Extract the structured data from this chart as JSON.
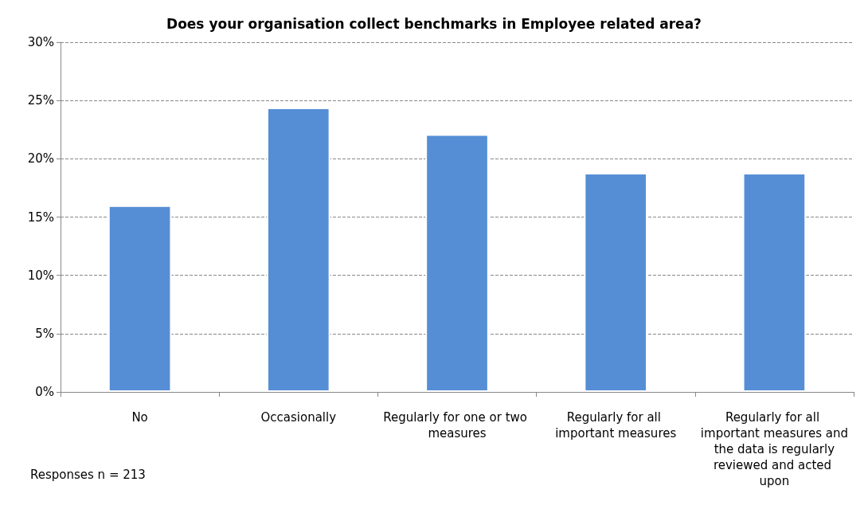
{
  "chart_data": {
    "type": "bar",
    "title": "Does your organisation collect benchmarks in Employee related area?",
    "categories": [
      "No",
      "Occasionally",
      "Regularly for one or two measures",
      "Regularly for all important measures",
      "Regularly for all important measures and the data is regularly reviewed and acted upon"
    ],
    "values": [
      16.0,
      24.4,
      22.1,
      18.8,
      18.8
    ],
    "color": "#558ed5",
    "ylim": [
      0,
      30
    ],
    "yticks": [
      {
        "value": 0,
        "label": "0%"
      },
      {
        "value": 5,
        "label": "5%"
      },
      {
        "value": 10,
        "label": "10%"
      },
      {
        "value": 15,
        "label": "15%"
      },
      {
        "value": 20,
        "label": "20%"
      },
      {
        "value": 25,
        "label": "25%"
      },
      {
        "value": 30,
        "label": "30%"
      }
    ],
    "grid": "y",
    "annotations": [
      "Responses n = 213"
    ]
  }
}
